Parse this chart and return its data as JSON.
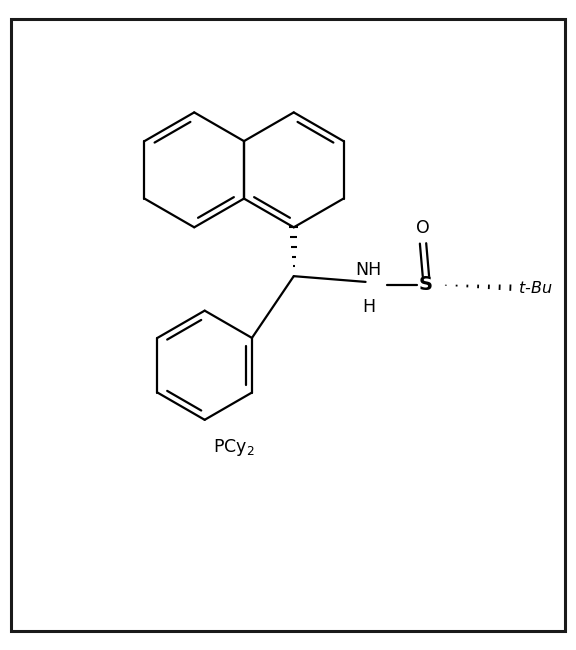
{
  "background_color": "#ffffff",
  "border_color": "#1a1a1a",
  "line_color": "#000000",
  "line_width": 1.6,
  "fig_width": 5.76,
  "fig_height": 6.5,
  "dpi": 100,
  "xlim": [
    0,
    10
  ],
  "ylim": [
    0,
    11
  ]
}
